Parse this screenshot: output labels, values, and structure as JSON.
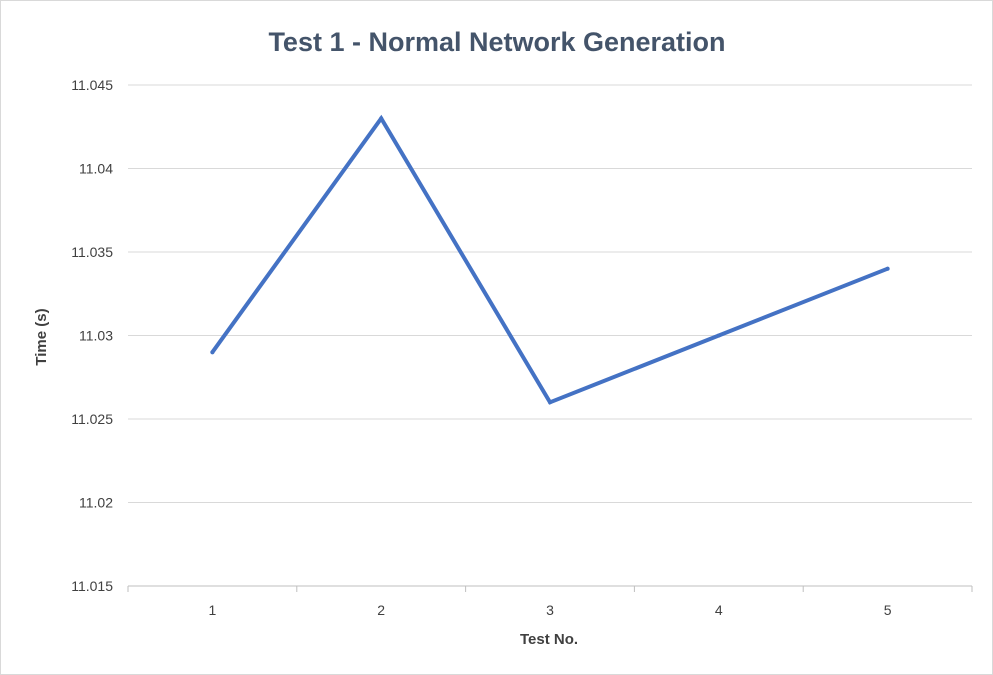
{
  "chart_data": {
    "type": "line",
    "title": "Test 1 - Normal Network Generation",
    "xlabel": "Test No.",
    "ylabel": "Time (s)",
    "categories": [
      "1",
      "2",
      "3",
      "4",
      "5"
    ],
    "series": [
      {
        "values": [
          11.029,
          11.043,
          11.026,
          11.03,
          11.034
        ],
        "color": "#4472c4"
      }
    ],
    "ylim": [
      11.015,
      11.045
    ],
    "yticks": [
      "11.015",
      "11.02",
      "11.025",
      "11.03",
      "11.035",
      "11.04",
      "11.045"
    ],
    "grid": true,
    "legend": "none"
  }
}
